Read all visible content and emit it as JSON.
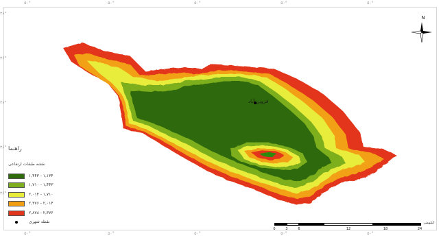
{
  "map": {
    "city_label": "قزوین آباد",
    "north_label": "N",
    "colors": {
      "class1": "#2e6b0a",
      "class2": "#7dae1f",
      "class3": "#e8ec3a",
      "class4": "#f2a012",
      "class5": "#e2361c",
      "inner_core": "#2f8a0f"
    }
  },
  "legend": {
    "title": "راهنما",
    "subtitle": "نقشه طبقات ارتفاعی",
    "items": [
      {
        "label": "۱,۱۳۴ - ۱,۴۴۳",
        "color": "#2e6b0a"
      },
      {
        "label": "۱,۴۴۳ - ۱,۷۱۰",
        "color": "#7dae1f"
      },
      {
        "label": "۱,۷۱۰ - ۲,۰۱۴",
        "color": "#e8ec3a"
      },
      {
        "label": "۲,۰۱۴ - ۲,۳۷۶",
        "color": "#f2a012"
      },
      {
        "label": "۲,۳۷۶ - ۲,۸۷۸",
        "color": "#e2361c"
      }
    ],
    "point_label": "نقطه شهری"
  },
  "scale_bar": {
    "labels": [
      "0",
      "3",
      "6",
      "12",
      "18",
      "24"
    ],
    "unit": "کیلومتر"
  },
  "grid_ticks": {
    "top": [
      "۵۰°",
      "۵۰°",
      "۵۰°",
      "۵۰°",
      "۵۰°"
    ],
    "bottom": [
      "۵۰°",
      "۵۰°",
      "۵۰°",
      "۵۰°",
      "۵۰°"
    ],
    "left": [
      "۳۶°",
      "۳۶°",
      "۳۶°",
      "۳۶°",
      "۳۶°"
    ]
  }
}
